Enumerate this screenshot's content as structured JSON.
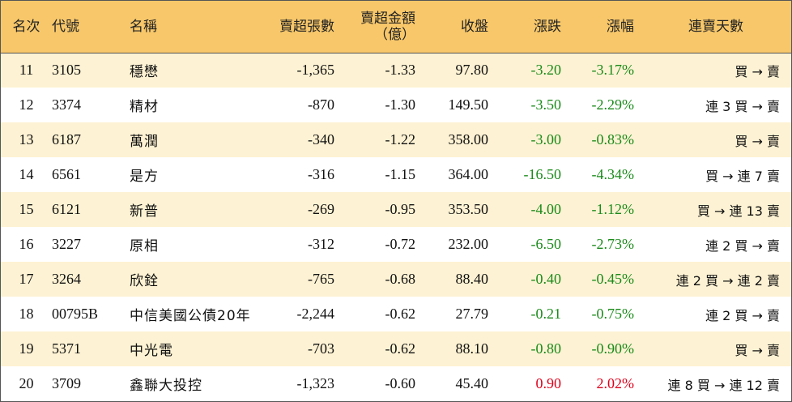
{
  "headers": {
    "rank": "名次",
    "code": "代號",
    "name": "名稱",
    "net_sell_lots": "賣超張數",
    "net_sell_amount_line1": "賣超金額",
    "net_sell_amount_line2": "（億）",
    "close": "收盤",
    "change": "漲跌",
    "pct_change": "漲幅",
    "streak": "連賣天數"
  },
  "rows": [
    {
      "rank": "11",
      "code": "3105",
      "name": "穩懋",
      "lots": "-1,365",
      "amount": "-1.33",
      "close": "97.80",
      "change": "-3.20",
      "pct": "-3.17%",
      "streak": "買 → 賣",
      "dir": "neg"
    },
    {
      "rank": "12",
      "code": "3374",
      "name": "精材",
      "lots": "-870",
      "amount": "-1.30",
      "close": "149.50",
      "change": "-3.50",
      "pct": "-2.29%",
      "streak": "連 3 買 → 賣",
      "dir": "neg"
    },
    {
      "rank": "13",
      "code": "6187",
      "name": "萬潤",
      "lots": "-340",
      "amount": "-1.22",
      "close": "358.00",
      "change": "-3.00",
      "pct": "-0.83%",
      "streak": "買 → 賣",
      "dir": "neg"
    },
    {
      "rank": "14",
      "code": "6561",
      "name": "是方",
      "lots": "-316",
      "amount": "-1.15",
      "close": "364.00",
      "change": "-16.50",
      "pct": "-4.34%",
      "streak": "買 → 連 7 賣",
      "dir": "neg"
    },
    {
      "rank": "15",
      "code": "6121",
      "name": "新普",
      "lots": "-269",
      "amount": "-0.95",
      "close": "353.50",
      "change": "-4.00",
      "pct": "-1.12%",
      "streak": "買 → 連 13 賣",
      "dir": "neg"
    },
    {
      "rank": "16",
      "code": "3227",
      "name": "原相",
      "lots": "-312",
      "amount": "-0.72",
      "close": "232.00",
      "change": "-6.50",
      "pct": "-2.73%",
      "streak": "連 2 買 → 賣",
      "dir": "neg"
    },
    {
      "rank": "17",
      "code": "3264",
      "name": "欣銓",
      "lots": "-765",
      "amount": "-0.68",
      "close": "88.40",
      "change": "-0.40",
      "pct": "-0.45%",
      "streak": "連 2 買 → 連 2 賣",
      "dir": "neg"
    },
    {
      "rank": "18",
      "code": "00795B",
      "name": "中信美國公債20年",
      "lots": "-2,244",
      "amount": "-0.62",
      "close": "27.79",
      "change": "-0.21",
      "pct": "-0.75%",
      "streak": "連 2 買 → 賣",
      "dir": "neg"
    },
    {
      "rank": "19",
      "code": "5371",
      "name": "中光電",
      "lots": "-703",
      "amount": "-0.62",
      "close": "88.10",
      "change": "-0.80",
      "pct": "-0.90%",
      "streak": "買 → 賣",
      "dir": "neg"
    },
    {
      "rank": "20",
      "code": "3709",
      "name": "鑫聯大投控",
      "lots": "-1,323",
      "amount": "-0.60",
      "close": "45.40",
      "change": "0.90",
      "pct": "2.02%",
      "streak": "連 8 買 → 連 12 賣",
      "dir": "pos"
    }
  ],
  "colors": {
    "header_bg": "#f7c76a",
    "odd_row_bg": "#fdf2d3",
    "even_row_bg": "#ffffff",
    "down": "#1a8a1a",
    "up": "#e0001b"
  }
}
